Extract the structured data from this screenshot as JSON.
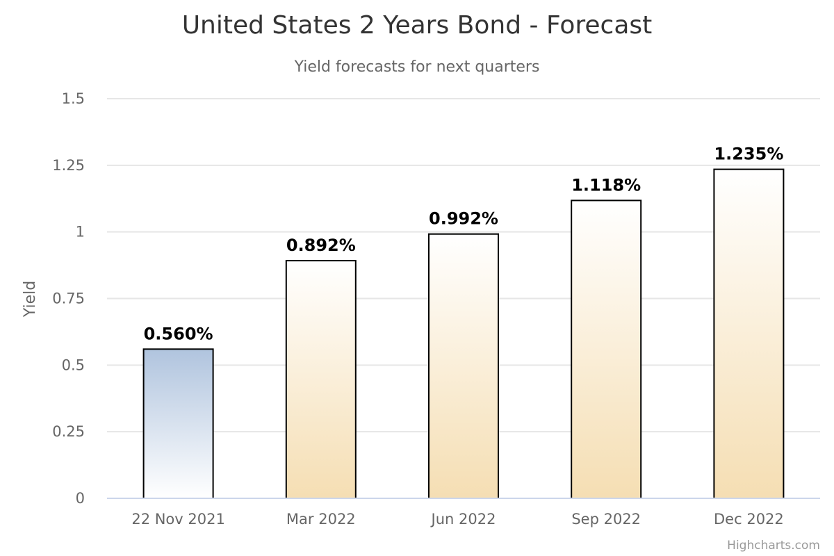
{
  "chart_data": {
    "type": "bar",
    "title": "United States 2 Years Bond - Forecast",
    "subtitle": "Yield forecasts for next quarters",
    "xlabel": "",
    "ylabel": "Yield",
    "categories": [
      "22 Nov 2021",
      "Mar 2022",
      "Jun 2022",
      "Sep 2022",
      "Dec 2022"
    ],
    "values": [
      0.56,
      0.892,
      0.992,
      1.118,
      1.235
    ],
    "data_labels": [
      "0.560%",
      "0.892%",
      "0.992%",
      "1.118%",
      "1.235%"
    ],
    "ylim": [
      0,
      1.5
    ],
    "y_ticks": [
      0,
      0.25,
      0.5,
      0.75,
      1,
      1.25,
      1.5
    ],
    "y_tick_labels": [
      "0",
      "0.25",
      "0.5",
      "0.75",
      "1",
      "1.25",
      "1.5"
    ],
    "grid": true,
    "legend": "none",
    "colors": {
      "current_bar_top": "#b0c4de",
      "current_bar_bottom": "#ffffff",
      "forecast_bar_top": "#ffffff",
      "forecast_bar_bottom": "#f5deb3"
    }
  },
  "credits": "Highcharts.com"
}
